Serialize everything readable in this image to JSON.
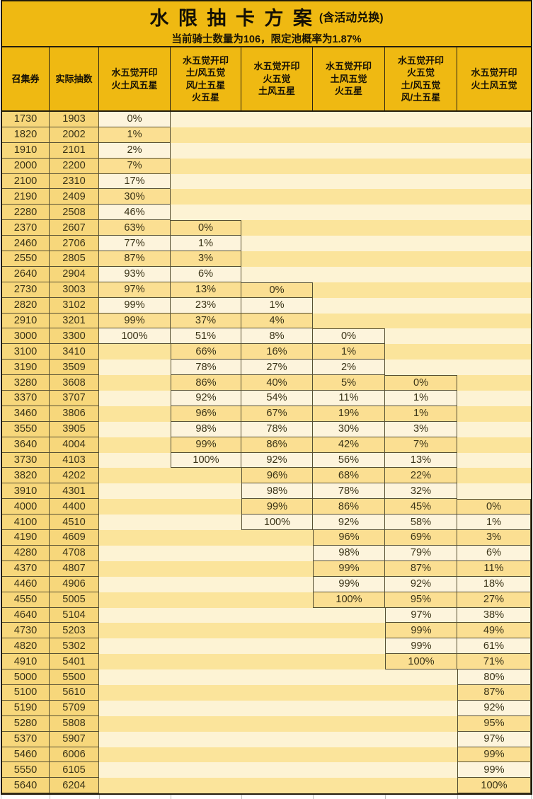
{
  "title": {
    "main": "水 限 抽 卡 方 案",
    "suffix": "(含活动兑换)"
  },
  "subtitle": "当前骑士数量为106，限定池概率为1.87%",
  "column_headers": [
    [
      "召集券"
    ],
    [
      "实际抽数"
    ],
    [
      "水五觉开印",
      "火土风五星"
    ],
    [
      "水五觉开印",
      "土/风五觉",
      "风/土五星",
      "火五星"
    ],
    [
      "水五觉开印",
      "火五觉",
      "土风五星"
    ],
    [
      "水五觉开印",
      "土风五觉",
      "火五星"
    ],
    [
      "水五觉开印",
      "火五觉",
      "土/风五觉",
      "风/土五星"
    ],
    [
      "水五觉开印",
      "火土风五觉"
    ]
  ],
  "colors": {
    "banner_amber": "#efb912",
    "gold_column": "#f7d77b",
    "stripe_light": "#fdf3d4",
    "stripe_gold": "#fbe49b",
    "cell_light": "#fdf4dc",
    "cell_gold": "#fbdf92",
    "grid_line": "#575033",
    "outer_border": "#221c0c"
  },
  "rows": [
    {
      "tickets": "1730",
      "actual": "1903",
      "pcts": [
        "0%",
        "",
        "",
        "",
        "",
        ""
      ]
    },
    {
      "tickets": "1820",
      "actual": "2002",
      "pcts": [
        "1%",
        "",
        "",
        "",
        "",
        ""
      ]
    },
    {
      "tickets": "1910",
      "actual": "2101",
      "pcts": [
        "2%",
        "",
        "",
        "",
        "",
        ""
      ]
    },
    {
      "tickets": "2000",
      "actual": "2200",
      "pcts": [
        "7%",
        "",
        "",
        "",
        "",
        ""
      ]
    },
    {
      "tickets": "2100",
      "actual": "2310",
      "pcts": [
        "17%",
        "",
        "",
        "",
        "",
        ""
      ]
    },
    {
      "tickets": "2190",
      "actual": "2409",
      "pcts": [
        "30%",
        "",
        "",
        "",
        "",
        ""
      ]
    },
    {
      "tickets": "2280",
      "actual": "2508",
      "pcts": [
        "46%",
        "",
        "",
        "",
        "",
        ""
      ]
    },
    {
      "tickets": "2370",
      "actual": "2607",
      "pcts": [
        "63%",
        "0%",
        "",
        "",
        "",
        ""
      ]
    },
    {
      "tickets": "2460",
      "actual": "2706",
      "pcts": [
        "77%",
        "1%",
        "",
        "",
        "",
        ""
      ]
    },
    {
      "tickets": "2550",
      "actual": "2805",
      "pcts": [
        "87%",
        "3%",
        "",
        "",
        "",
        ""
      ]
    },
    {
      "tickets": "2640",
      "actual": "2904",
      "pcts": [
        "93%",
        "6%",
        "",
        "",
        "",
        ""
      ]
    },
    {
      "tickets": "2730",
      "actual": "3003",
      "pcts": [
        "97%",
        "13%",
        "0%",
        "",
        "",
        ""
      ]
    },
    {
      "tickets": "2820",
      "actual": "3102",
      "pcts": [
        "99%",
        "23%",
        "1%",
        "",
        "",
        ""
      ]
    },
    {
      "tickets": "2910",
      "actual": "3201",
      "pcts": [
        "99%",
        "37%",
        "4%",
        "",
        "",
        ""
      ]
    },
    {
      "tickets": "3000",
      "actual": "3300",
      "pcts": [
        "100%",
        "51%",
        "8%",
        "0%",
        "",
        ""
      ]
    },
    {
      "tickets": "3100",
      "actual": "3410",
      "pcts": [
        "",
        "66%",
        "16%",
        "1%",
        "",
        ""
      ]
    },
    {
      "tickets": "3190",
      "actual": "3509",
      "pcts": [
        "",
        "78%",
        "27%",
        "2%",
        "",
        ""
      ]
    },
    {
      "tickets": "3280",
      "actual": "3608",
      "pcts": [
        "",
        "86%",
        "40%",
        "5%",
        "0%",
        ""
      ]
    },
    {
      "tickets": "3370",
      "actual": "3707",
      "pcts": [
        "",
        "92%",
        "54%",
        "11%",
        "1%",
        ""
      ]
    },
    {
      "tickets": "3460",
      "actual": "3806",
      "pcts": [
        "",
        "96%",
        "67%",
        "19%",
        "1%",
        ""
      ]
    },
    {
      "tickets": "3550",
      "actual": "3905",
      "pcts": [
        "",
        "98%",
        "78%",
        "30%",
        "3%",
        ""
      ]
    },
    {
      "tickets": "3640",
      "actual": "4004",
      "pcts": [
        "",
        "99%",
        "86%",
        "42%",
        "7%",
        ""
      ]
    },
    {
      "tickets": "3730",
      "actual": "4103",
      "pcts": [
        "",
        "100%",
        "92%",
        "56%",
        "13%",
        ""
      ]
    },
    {
      "tickets": "3820",
      "actual": "4202",
      "pcts": [
        "",
        "",
        "96%",
        "68%",
        "22%",
        ""
      ]
    },
    {
      "tickets": "3910",
      "actual": "4301",
      "pcts": [
        "",
        "",
        "98%",
        "78%",
        "32%",
        ""
      ]
    },
    {
      "tickets": "4000",
      "actual": "4400",
      "pcts": [
        "",
        "",
        "99%",
        "86%",
        "45%",
        "0%"
      ]
    },
    {
      "tickets": "4100",
      "actual": "4510",
      "pcts": [
        "",
        "",
        "100%",
        "92%",
        "58%",
        "1%"
      ]
    },
    {
      "tickets": "4190",
      "actual": "4609",
      "pcts": [
        "",
        "",
        "",
        "96%",
        "69%",
        "3%"
      ]
    },
    {
      "tickets": "4280",
      "actual": "4708",
      "pcts": [
        "",
        "",
        "",
        "98%",
        "79%",
        "6%"
      ]
    },
    {
      "tickets": "4370",
      "actual": "4807",
      "pcts": [
        "",
        "",
        "",
        "99%",
        "87%",
        "11%"
      ]
    },
    {
      "tickets": "4460",
      "actual": "4906",
      "pcts": [
        "",
        "",
        "",
        "99%",
        "92%",
        "18%"
      ]
    },
    {
      "tickets": "4550",
      "actual": "5005",
      "pcts": [
        "",
        "",
        "",
        "100%",
        "95%",
        "27%"
      ]
    },
    {
      "tickets": "4640",
      "actual": "5104",
      "pcts": [
        "",
        "",
        "",
        "",
        "97%",
        "38%"
      ]
    },
    {
      "tickets": "4730",
      "actual": "5203",
      "pcts": [
        "",
        "",
        "",
        "",
        "99%",
        "49%"
      ]
    },
    {
      "tickets": "4820",
      "actual": "5302",
      "pcts": [
        "",
        "",
        "",
        "",
        "99%",
        "61%"
      ]
    },
    {
      "tickets": "4910",
      "actual": "5401",
      "pcts": [
        "",
        "",
        "",
        "",
        "100%",
        "71%"
      ]
    },
    {
      "tickets": "5000",
      "actual": "5500",
      "pcts": [
        "",
        "",
        "",
        "",
        "",
        "80%"
      ]
    },
    {
      "tickets": "5100",
      "actual": "5610",
      "pcts": [
        "",
        "",
        "",
        "",
        "",
        "87%"
      ]
    },
    {
      "tickets": "5190",
      "actual": "5709",
      "pcts": [
        "",
        "",
        "",
        "",
        "",
        "92%"
      ]
    },
    {
      "tickets": "5280",
      "actual": "5808",
      "pcts": [
        "",
        "",
        "",
        "",
        "",
        "95%"
      ]
    },
    {
      "tickets": "5370",
      "actual": "5907",
      "pcts": [
        "",
        "",
        "",
        "",
        "",
        "97%"
      ]
    },
    {
      "tickets": "5460",
      "actual": "6006",
      "pcts": [
        "",
        "",
        "",
        "",
        "",
        "99%"
      ]
    },
    {
      "tickets": "5550",
      "actual": "6105",
      "pcts": [
        "",
        "",
        "",
        "",
        "",
        "99%"
      ]
    },
    {
      "tickets": "5640",
      "actual": "6204",
      "pcts": [
        "",
        "",
        "",
        "",
        "",
        "100%"
      ]
    }
  ]
}
